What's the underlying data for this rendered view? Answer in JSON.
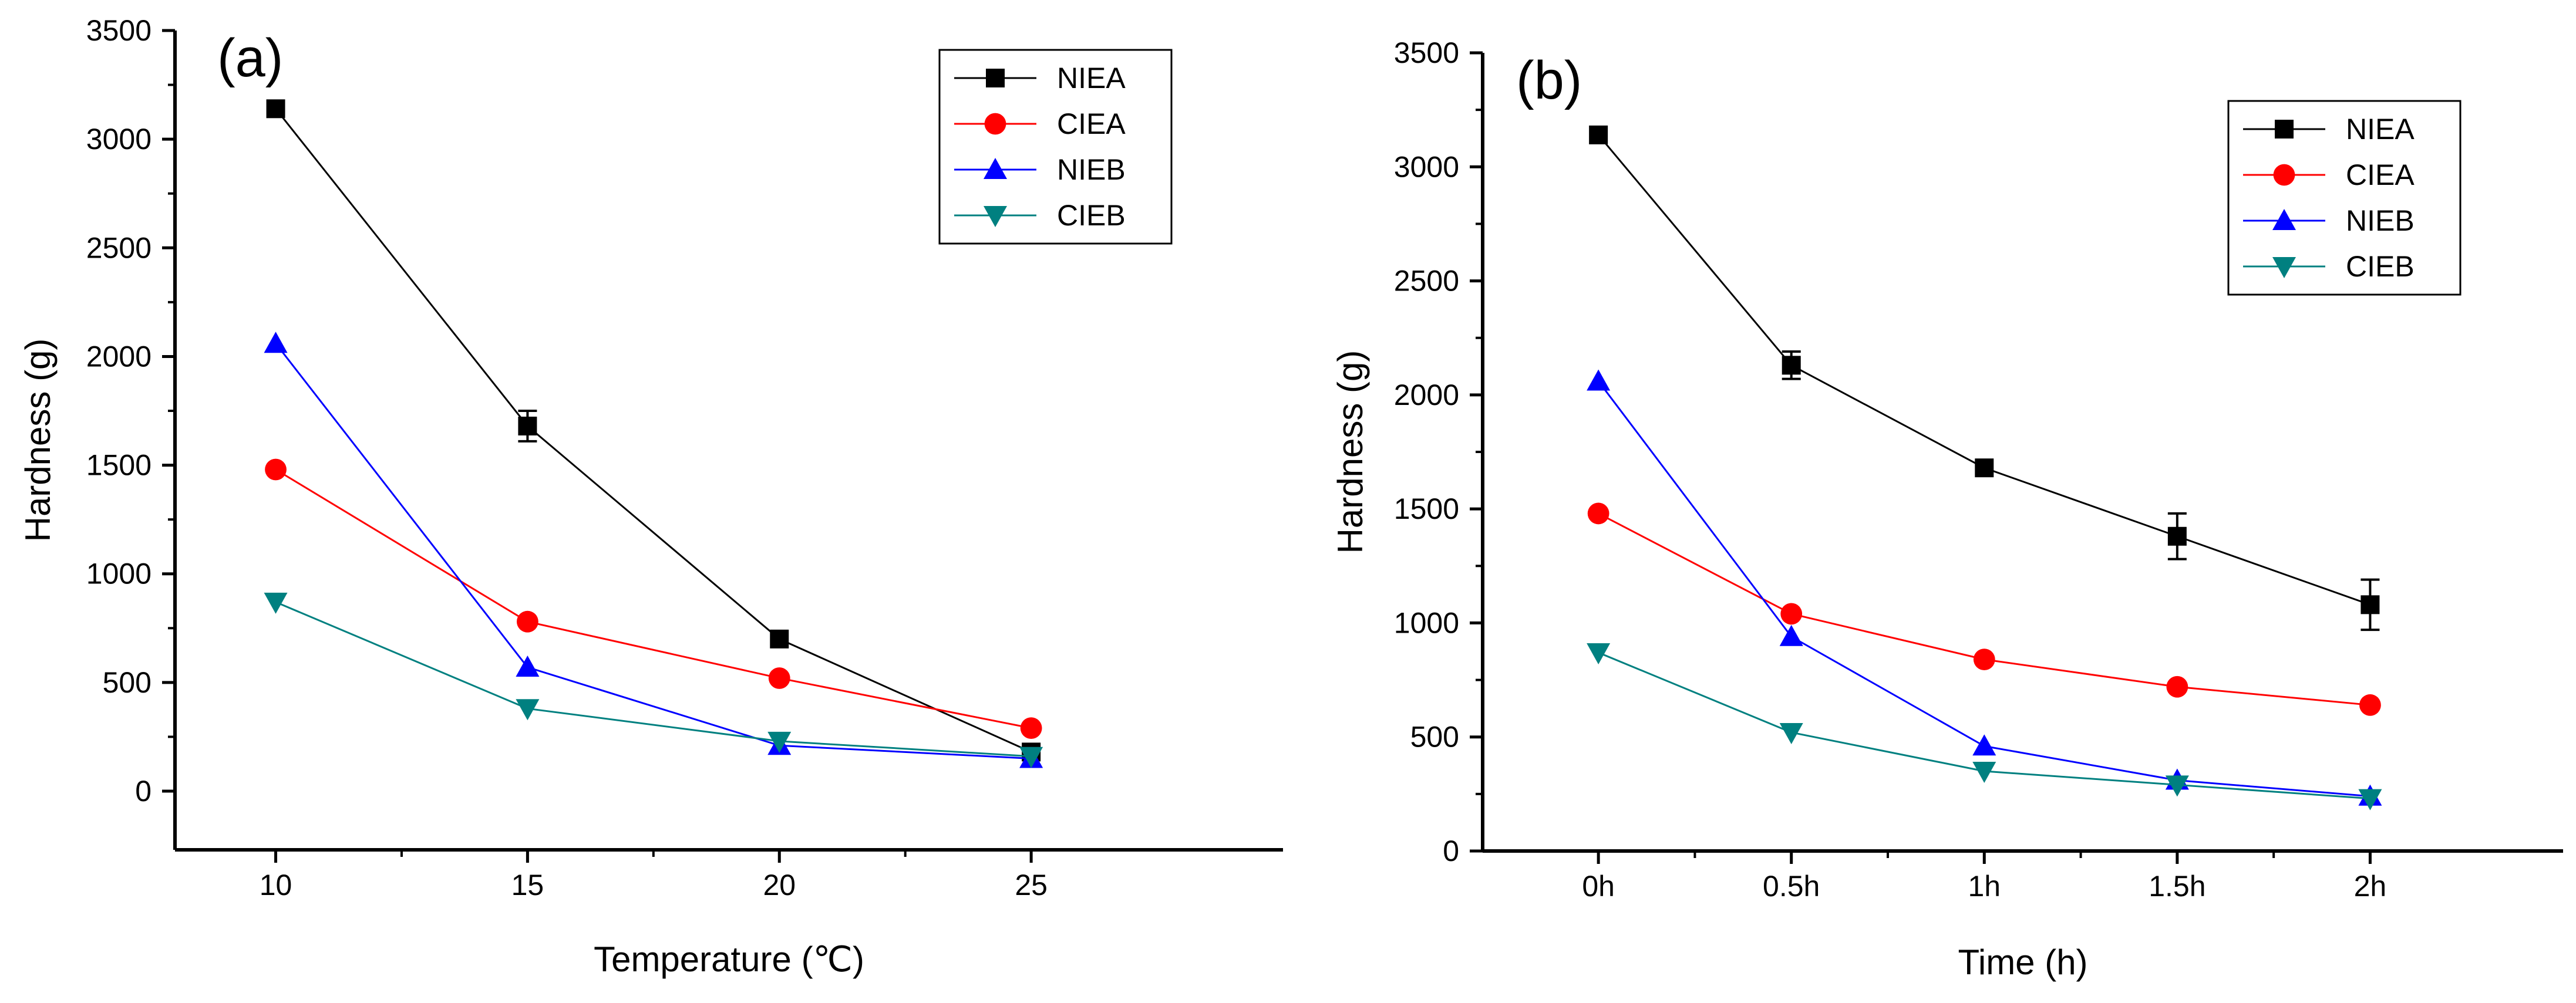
{
  "chart_data": [
    {
      "type": "line",
      "panel_label": "(a)",
      "xlabel": "Temperature (℃)",
      "ylabel": "Hardness (g)",
      "categories": [
        "10",
        "15",
        "20",
        "25"
      ],
      "x": [
        10,
        15,
        20,
        25
      ],
      "xlim": [
        8,
        30
      ],
      "ylim": [
        -270,
        3500
      ],
      "yticks": [
        0,
        500,
        1000,
        1500,
        2000,
        2500,
        3000,
        3500
      ],
      "series": [
        {
          "name": "NIEA",
          "color": "#000000",
          "marker": "square",
          "values": [
            3140,
            1680,
            700,
            180
          ],
          "errors": [
            0,
            70,
            0,
            0
          ]
        },
        {
          "name": "CIEA",
          "color": "#ff0000",
          "marker": "circle",
          "values": [
            1480,
            780,
            520,
            290
          ],
          "errors": [
            0,
            0,
            0,
            0
          ]
        },
        {
          "name": "NIEB",
          "color": "#0000ff",
          "marker": "triangle-up",
          "values": [
            2060,
            570,
            210,
            150
          ],
          "errors": [
            0,
            0,
            0,
            0
          ]
        },
        {
          "name": "CIEB",
          "color": "#008080",
          "marker": "triangle-down",
          "values": [
            870,
            380,
            230,
            160
          ],
          "errors": [
            0,
            0,
            0,
            0
          ]
        }
      ],
      "legend_position": "top-right"
    },
    {
      "type": "line",
      "panel_label": "(b)",
      "xlabel": "Time (h)",
      "ylabel": "Hardness (g)",
      "categories": [
        "0h",
        "0.5h",
        "1h",
        "1.5h",
        "2h"
      ],
      "x": [
        0,
        1,
        2,
        3,
        4
      ],
      "xlim": [
        -0.6,
        5.0
      ],
      "ylim": [
        0,
        3500
      ],
      "yticks": [
        0,
        500,
        1000,
        1500,
        2000,
        2500,
        3000,
        3500
      ],
      "series": [
        {
          "name": "NIEA",
          "color": "#000000",
          "marker": "square",
          "values": [
            3140,
            2130,
            1680,
            1380,
            1080
          ],
          "errors": [
            0,
            60,
            0,
            100,
            110
          ]
        },
        {
          "name": "CIEA",
          "color": "#ff0000",
          "marker": "circle",
          "values": [
            1480,
            1040,
            840,
            720,
            640
          ],
          "errors": [
            0,
            0,
            0,
            0,
            0
          ]
        },
        {
          "name": "NIEB",
          "color": "#0000ff",
          "marker": "triangle-up",
          "values": [
            2060,
            940,
            460,
            310,
            240
          ],
          "errors": [
            0,
            0,
            0,
            0,
            0
          ]
        },
        {
          "name": "CIEB",
          "color": "#008080",
          "marker": "triangle-down",
          "values": [
            870,
            520,
            350,
            290,
            230
          ],
          "errors": [
            0,
            0,
            0,
            0,
            0
          ]
        }
      ],
      "legend_position": "top-right"
    }
  ]
}
